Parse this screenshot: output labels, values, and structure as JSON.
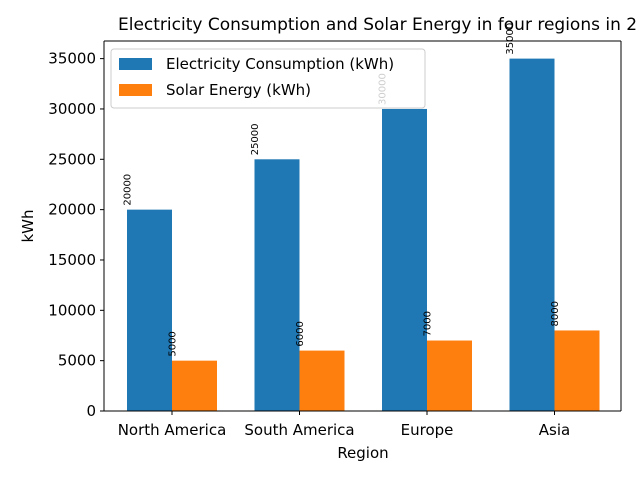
{
  "chart_data": {
    "type": "bar",
    "title": "Electricity Consumption and Solar Energy in four regions in 2",
    "xlabel": "Region",
    "ylabel": "kWh",
    "categories": [
      "North America",
      "South America",
      "Europe",
      "Asia"
    ],
    "series": [
      {
        "name": "Electricity Consumption (kWh)",
        "values": [
          20000,
          25000,
          30000,
          35000
        ],
        "color": "#1f77b4"
      },
      {
        "name": "Solar Energy (kWh)",
        "values": [
          5000,
          6000,
          7000,
          8000
        ],
        "color": "#ff7f0e"
      }
    ],
    "ylim": [
      0,
      36750
    ],
    "yticks": [
      0,
      5000,
      10000,
      15000,
      20000,
      25000,
      30000,
      35000
    ],
    "grid": false,
    "legend": "top-left",
    "data_labels": true
  }
}
